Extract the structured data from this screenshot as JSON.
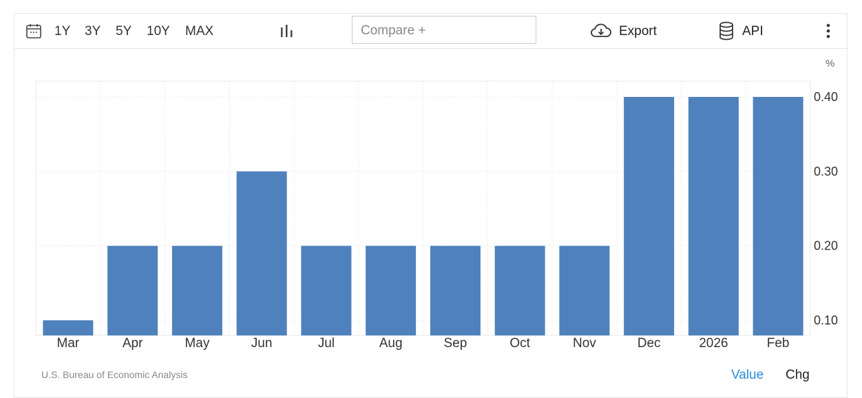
{
  "toolbar": {
    "ranges": [
      "1Y",
      "3Y",
      "5Y",
      "10Y",
      "MAX"
    ],
    "compare_placeholder": "Compare +",
    "export_label": "Export",
    "api_label": "API"
  },
  "footer": {
    "source": "U.S. Bureau of Economic Analysis",
    "tab_value": "Value",
    "tab_chg": "Chg"
  },
  "colors": {
    "bar": "#4f81bd",
    "accent": "#2a8bd6"
  },
  "chart_data": {
    "type": "bar",
    "categories": [
      "Mar",
      "Apr",
      "May",
      "Jun",
      "Jul",
      "Aug",
      "Sep",
      "Oct",
      "Nov",
      "Dec",
      "2026",
      "Feb"
    ],
    "values": [
      0.1,
      0.2,
      0.2,
      0.3,
      0.2,
      0.2,
      0.2,
      0.2,
      0.2,
      0.4,
      0.4,
      0.4
    ],
    "y_unit": "%",
    "y_ticks": [
      "0.10",
      "0.20",
      "0.30",
      "0.40"
    ],
    "ylim": [
      0.08,
      0.42
    ],
    "y_axis_position": "right",
    "grid": true
  }
}
